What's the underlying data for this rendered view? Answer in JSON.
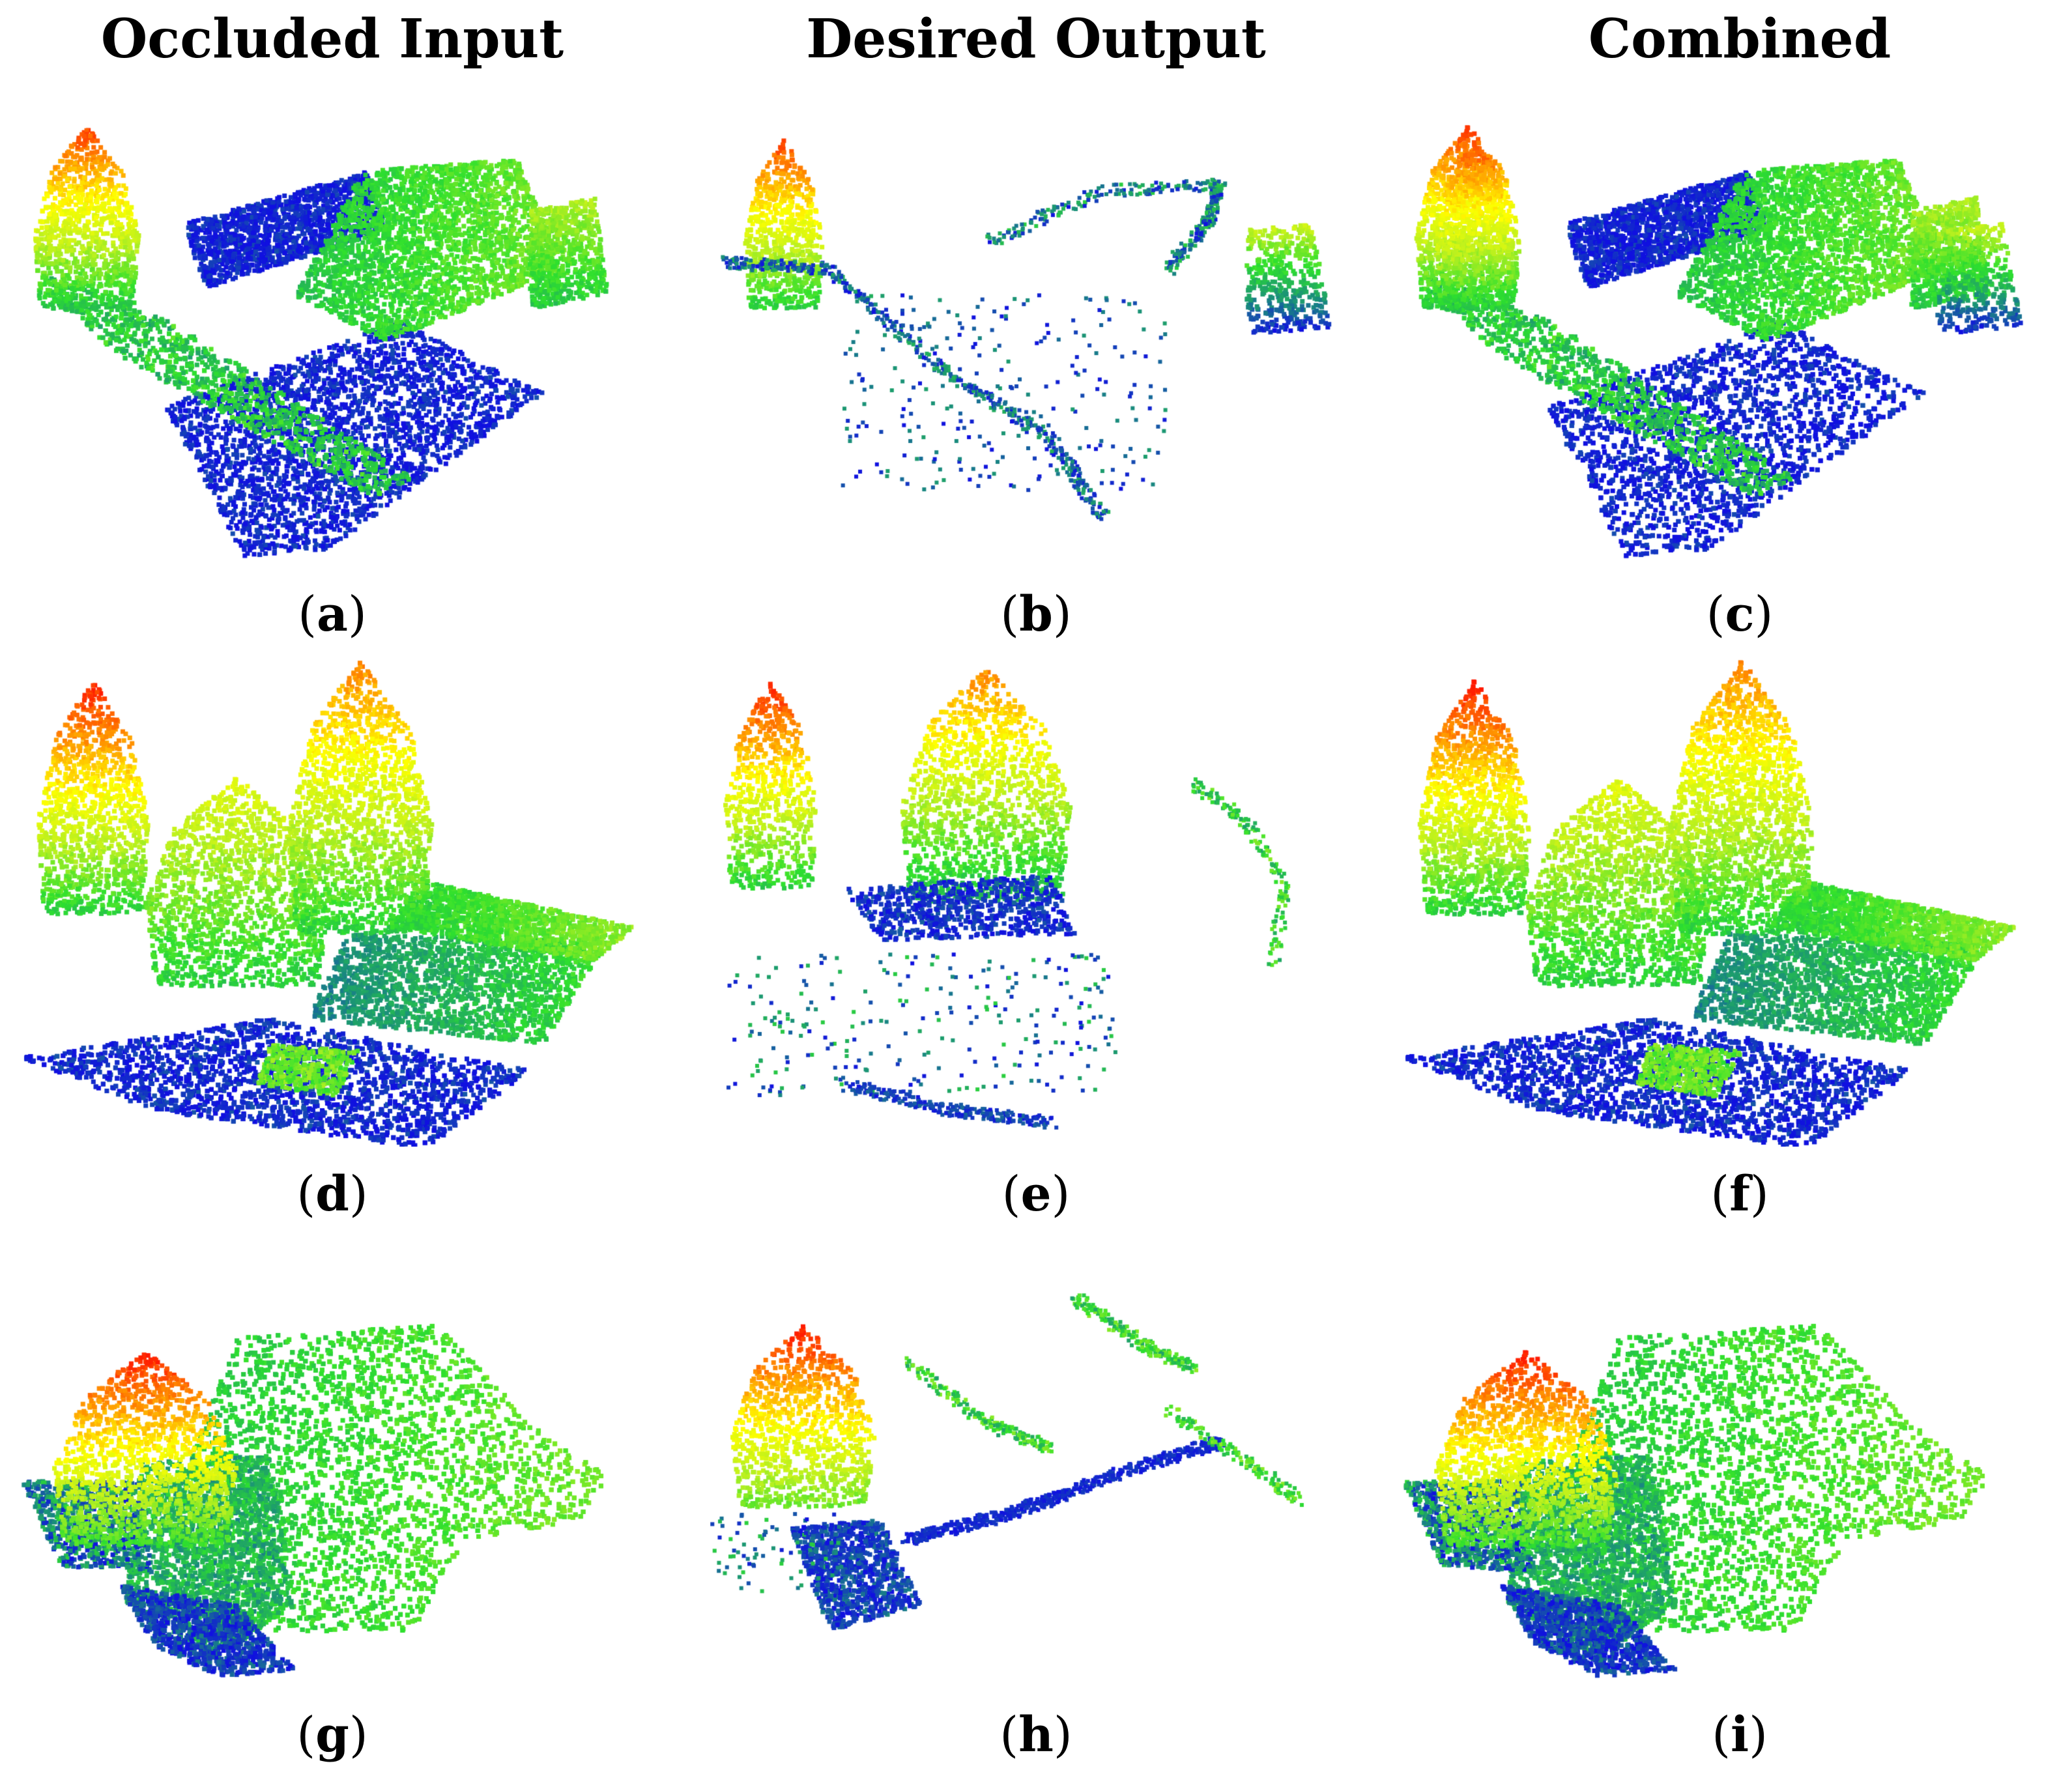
{
  "columns": [
    "Occluded Input",
    "Desired Output",
    "Combined"
  ],
  "panels": [
    {
      "label": "a"
    },
    {
      "label": "b"
    },
    {
      "label": "c"
    },
    {
      "label": "d"
    },
    {
      "label": "e"
    },
    {
      "label": "f"
    },
    {
      "label": "g"
    },
    {
      "label": "h"
    },
    {
      "label": "i"
    }
  ],
  "colormap": [
    "#1010e0",
    "#1a8f7a",
    "#2ee02e",
    "#b8f020",
    "#ffff00",
    "#ff9000",
    "#ff1a00"
  ]
}
